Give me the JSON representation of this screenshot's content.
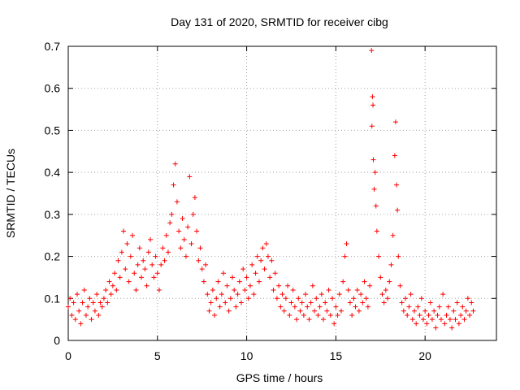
{
  "chart_data": {
    "type": "scatter",
    "title": "Day 131 of 2020, SRMTID for receiver cibg",
    "xlabel": "GPS time / hours",
    "ylabel": "SRMTID / TECUs",
    "xlim": [
      0,
      24
    ],
    "ylim": [
      0,
      0.7
    ],
    "xticks": [
      0,
      5,
      10,
      15,
      20
    ],
    "yticks": [
      0,
      0.1,
      0.2,
      0.3,
      0.4,
      0.5,
      0.6,
      0.7
    ],
    "xtick_labels": [
      "0",
      "5",
      "10",
      "15",
      "20"
    ],
    "ytick_labels": [
      "0",
      "0.1",
      "0.2",
      "0.3",
      "0.4",
      "0.5",
      "0.6",
      "0.7"
    ],
    "grid": true,
    "marker": "+",
    "color": "#ff0000",
    "series": [
      {
        "name": "SRMTID",
        "points": [
          [
            0.0,
            0.08
          ],
          [
            0.1,
            0.1
          ],
          [
            0.2,
            0.06
          ],
          [
            0.3,
            0.09
          ],
          [
            0.4,
            0.05
          ],
          [
            0.5,
            0.11
          ],
          [
            0.6,
            0.07
          ],
          [
            0.7,
            0.04
          ],
          [
            0.8,
            0.09
          ],
          [
            0.9,
            0.12
          ],
          [
            1.0,
            0.06
          ],
          [
            1.1,
            0.08
          ],
          [
            1.2,
            0.1
          ],
          [
            1.3,
            0.05
          ],
          [
            1.4,
            0.09
          ],
          [
            1.5,
            0.07
          ],
          [
            1.6,
            0.11
          ],
          [
            1.7,
            0.06
          ],
          [
            1.8,
            0.09
          ],
          [
            1.9,
            0.08
          ],
          [
            2.0,
            0.1
          ],
          [
            2.1,
            0.12
          ],
          [
            2.2,
            0.09
          ],
          [
            2.3,
            0.14
          ],
          [
            2.4,
            0.11
          ],
          [
            2.5,
            0.13
          ],
          [
            2.6,
            0.16
          ],
          [
            2.7,
            0.12
          ],
          [
            2.8,
            0.19
          ],
          [
            2.9,
            0.15
          ],
          [
            3.0,
            0.21
          ],
          [
            3.1,
            0.26
          ],
          [
            3.2,
            0.17
          ],
          [
            3.3,
            0.23
          ],
          [
            3.4,
            0.14
          ],
          [
            3.5,
            0.2
          ],
          [
            3.6,
            0.25
          ],
          [
            3.7,
            0.16
          ],
          [
            3.8,
            0.12
          ],
          [
            3.9,
            0.18
          ],
          [
            4.0,
            0.22
          ],
          [
            4.1,
            0.15
          ],
          [
            4.2,
            0.19
          ],
          [
            4.3,
            0.17
          ],
          [
            4.4,
            0.13
          ],
          [
            4.5,
            0.21
          ],
          [
            4.6,
            0.24
          ],
          [
            4.7,
            0.18
          ],
          [
            4.8,
            0.15
          ],
          [
            4.9,
            0.2
          ],
          [
            5.0,
            0.16
          ],
          [
            5.1,
            0.12
          ],
          [
            5.2,
            0.18
          ],
          [
            5.3,
            0.22
          ],
          [
            5.4,
            0.19
          ],
          [
            5.5,
            0.25
          ],
          [
            5.6,
            0.21
          ],
          [
            5.7,
            0.28
          ],
          [
            5.8,
            0.3
          ],
          [
            5.9,
            0.37
          ],
          [
            6.0,
            0.42
          ],
          [
            6.1,
            0.33
          ],
          [
            6.2,
            0.26
          ],
          [
            6.3,
            0.22
          ],
          [
            6.4,
            0.29
          ],
          [
            6.5,
            0.24
          ],
          [
            6.6,
            0.2
          ],
          [
            6.7,
            0.27
          ],
          [
            6.8,
            0.39
          ],
          [
            6.9,
            0.23
          ],
          [
            7.0,
            0.3
          ],
          [
            7.1,
            0.34
          ],
          [
            7.2,
            0.26
          ],
          [
            7.3,
            0.19
          ],
          [
            7.4,
            0.22
          ],
          [
            7.5,
            0.17
          ],
          [
            7.6,
            0.14
          ],
          [
            7.7,
            0.18
          ],
          [
            7.8,
            0.11
          ],
          [
            7.9,
            0.07
          ],
          [
            8.0,
            0.09
          ],
          [
            8.1,
            0.12
          ],
          [
            8.2,
            0.06
          ],
          [
            8.3,
            0.1
          ],
          [
            8.4,
            0.14
          ],
          [
            8.5,
            0.08
          ],
          [
            8.6,
            0.11
          ],
          [
            8.7,
            0.16
          ],
          [
            8.8,
            0.09
          ],
          [
            8.9,
            0.13
          ],
          [
            9.0,
            0.07
          ],
          [
            9.1,
            0.1
          ],
          [
            9.2,
            0.15
          ],
          [
            9.3,
            0.12
          ],
          [
            9.4,
            0.08
          ],
          [
            9.5,
            0.11
          ],
          [
            9.6,
            0.14
          ],
          [
            9.7,
            0.09
          ],
          [
            9.8,
            0.17
          ],
          [
            9.9,
            0.12
          ],
          [
            10.0,
            0.15
          ],
          [
            10.1,
            0.1
          ],
          [
            10.2,
            0.13
          ],
          [
            10.3,
            0.18
          ],
          [
            10.4,
            0.11
          ],
          [
            10.5,
            0.16
          ],
          [
            10.6,
            0.2
          ],
          [
            10.7,
            0.14
          ],
          [
            10.8,
            0.19
          ],
          [
            10.9,
            0.22
          ],
          [
            11.0,
            0.17
          ],
          [
            11.1,
            0.23
          ],
          [
            11.2,
            0.2
          ],
          [
            11.3,
            0.15
          ],
          [
            11.4,
            0.19
          ],
          [
            11.5,
            0.12
          ],
          [
            11.6,
            0.16
          ],
          [
            11.7,
            0.1
          ],
          [
            11.8,
            0.13
          ],
          [
            11.9,
            0.08
          ],
          [
            12.0,
            0.11
          ],
          [
            12.1,
            0.07
          ],
          [
            12.2,
            0.1
          ],
          [
            12.3,
            0.13
          ],
          [
            12.4,
            0.06
          ],
          [
            12.5,
            0.09
          ],
          [
            12.6,
            0.12
          ],
          [
            12.7,
            0.08
          ],
          [
            12.8,
            0.05
          ],
          [
            12.9,
            0.1
          ],
          [
            13.0,
            0.07
          ],
          [
            13.1,
            0.09
          ],
          [
            13.2,
            0.06
          ],
          [
            13.3,
            0.11
          ],
          [
            13.4,
            0.08
          ],
          [
            13.5,
            0.05
          ],
          [
            13.6,
            0.09
          ],
          [
            13.7,
            0.13
          ],
          [
            13.8,
            0.07
          ],
          [
            13.9,
            0.1
          ],
          [
            14.0,
            0.06
          ],
          [
            14.1,
            0.08
          ],
          [
            14.2,
            0.11
          ],
          [
            14.3,
            0.05
          ],
          [
            14.4,
            0.09
          ],
          [
            14.5,
            0.07
          ],
          [
            14.6,
            0.12
          ],
          [
            14.7,
            0.06
          ],
          [
            14.8,
            0.1
          ],
          [
            14.9,
            0.04
          ],
          [
            15.0,
            0.08
          ],
          [
            15.1,
            0.06
          ],
          [
            15.2,
            0.11
          ],
          [
            15.3,
            0.07
          ],
          [
            15.4,
            0.14
          ],
          [
            15.5,
            0.2
          ],
          [
            15.6,
            0.23
          ],
          [
            15.7,
            0.12
          ],
          [
            15.8,
            0.09
          ],
          [
            15.9,
            0.06
          ],
          [
            16.0,
            0.1
          ],
          [
            16.1,
            0.08
          ],
          [
            16.2,
            0.12
          ],
          [
            16.3,
            0.07
          ],
          [
            16.4,
            0.11
          ],
          [
            16.5,
            0.09
          ],
          [
            16.6,
            0.14
          ],
          [
            16.7,
            0.1
          ],
          [
            16.8,
            0.08
          ],
          [
            16.9,
            0.13
          ],
          [
            17.0,
            0.69
          ],
          [
            17.02,
            0.51
          ],
          [
            17.05,
            0.58
          ],
          [
            17.08,
            0.56
          ],
          [
            17.1,
            0.43
          ],
          [
            17.15,
            0.36
          ],
          [
            17.2,
            0.4
          ],
          [
            17.25,
            0.32
          ],
          [
            17.3,
            0.26
          ],
          [
            17.4,
            0.2
          ],
          [
            17.5,
            0.15
          ],
          [
            17.6,
            0.11
          ],
          [
            17.7,
            0.09
          ],
          [
            17.8,
            0.12
          ],
          [
            17.9,
            0.1
          ],
          [
            18.0,
            0.14
          ],
          [
            18.1,
            0.18
          ],
          [
            18.2,
            0.25
          ],
          [
            18.3,
            0.44
          ],
          [
            18.35,
            0.52
          ],
          [
            18.4,
            0.37
          ],
          [
            18.45,
            0.31
          ],
          [
            18.5,
            0.2
          ],
          [
            18.6,
            0.13
          ],
          [
            18.7,
            0.09
          ],
          [
            18.8,
            0.07
          ],
          [
            18.9,
            0.1
          ],
          [
            19.0,
            0.06
          ],
          [
            19.1,
            0.08
          ],
          [
            19.2,
            0.11
          ],
          [
            19.3,
            0.05
          ],
          [
            19.4,
            0.07
          ],
          [
            19.5,
            0.04
          ],
          [
            19.6,
            0.08
          ],
          [
            19.7,
            0.06
          ],
          [
            19.8,
            0.1
          ],
          [
            19.9,
            0.05
          ],
          [
            20.0,
            0.07
          ],
          [
            20.1,
            0.04
          ],
          [
            20.2,
            0.06
          ],
          [
            20.3,
            0.09
          ],
          [
            20.4,
            0.05
          ],
          [
            20.5,
            0.07
          ],
          [
            20.6,
            0.03
          ],
          [
            20.7,
            0.06
          ],
          [
            20.8,
            0.08
          ],
          [
            20.9,
            0.05
          ],
          [
            21.0,
            0.11
          ],
          [
            21.1,
            0.04
          ],
          [
            21.2,
            0.06
          ],
          [
            21.3,
            0.08
          ],
          [
            21.4,
            0.05
          ],
          [
            21.5,
            0.03
          ],
          [
            21.6,
            0.07
          ],
          [
            21.7,
            0.05
          ],
          [
            21.8,
            0.09
          ],
          [
            21.9,
            0.04
          ],
          [
            22.0,
            0.06
          ],
          [
            22.1,
            0.08
          ],
          [
            22.2,
            0.05
          ],
          [
            22.3,
            0.07
          ],
          [
            22.4,
            0.1
          ],
          [
            22.5,
            0.06
          ],
          [
            22.6,
            0.09
          ],
          [
            22.7,
            0.07
          ]
        ]
      }
    ]
  }
}
